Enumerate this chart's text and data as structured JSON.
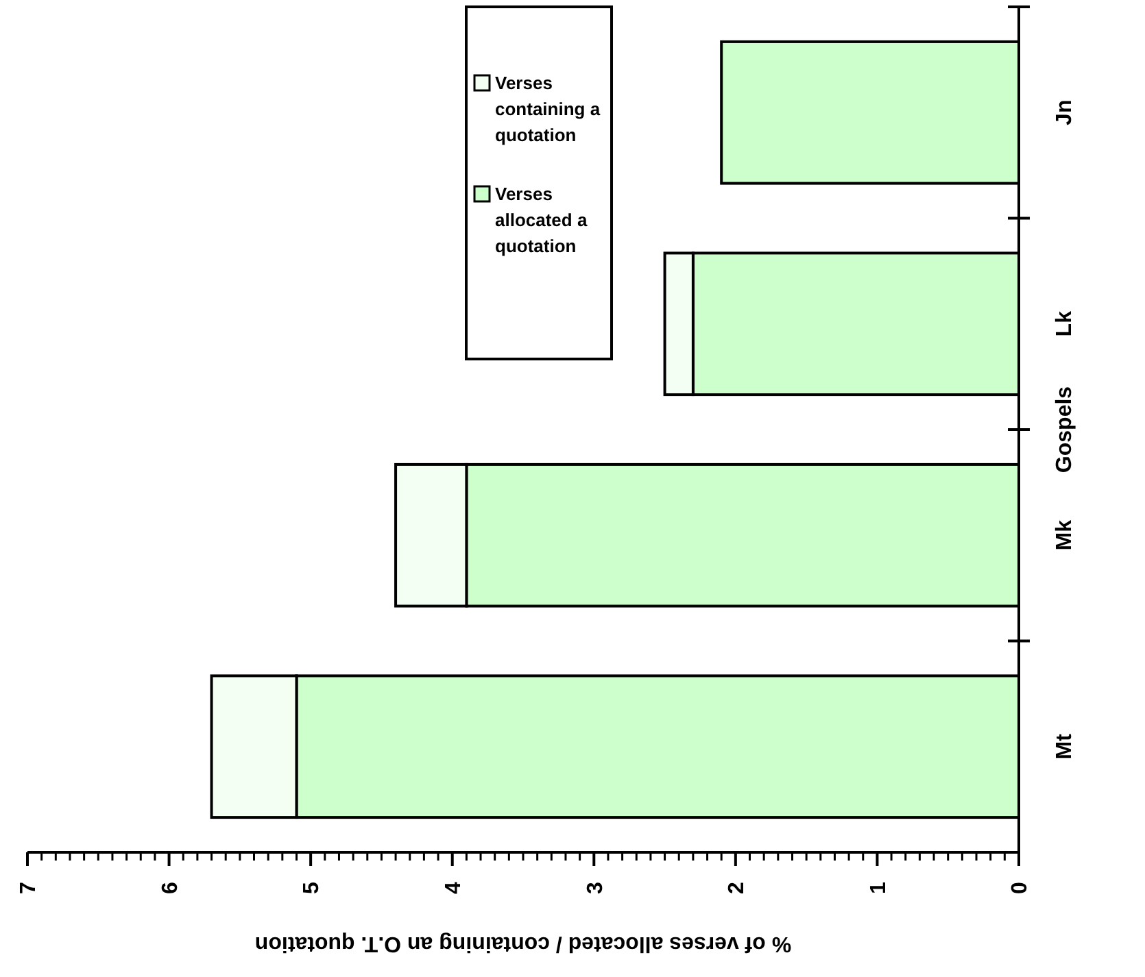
{
  "chart_data": {
    "type": "bar",
    "stacked": true,
    "orientation": "horizontal",
    "xlabel": "% of verses allocated / containing an O.T. quotation",
    "ylabel": "Gospels",
    "categories": [
      "Jn",
      "Lk",
      "Mk",
      "Mt"
    ],
    "series": [
      {
        "name": "Verses allocated a quotation",
        "color": "#ccffcc",
        "values": [
          2.1,
          2.3,
          3.9,
          5.1
        ]
      },
      {
        "name": "Verses containing a quotation",
        "color": "#f4fff4",
        "values": [
          0,
          0.2,
          0.5,
          0.6
        ]
      }
    ],
    "xlim": [
      7,
      0
    ],
    "xticks": [
      0,
      {
        "value": 0.1,
        "label": null
      },
      {
        "value": 0.2,
        "label": null
      },
      {
        "value": 0.3,
        "label": null
      },
      {
        "value": 0.4,
        "label": null
      },
      {
        "value": 0.5,
        "label": null
      },
      {
        "value": 0.6,
        "label": null
      },
      {
        "value": 0.7,
        "label": null
      },
      {
        "value": 0.8,
        "label": null
      },
      {
        "value": 0.9,
        "label": null
      },
      1,
      {
        "value": 1.1,
        "label": null
      },
      {
        "value": 1.2,
        "label": null
      },
      {
        "value": 1.3,
        "label": null
      },
      {
        "value": 1.4,
        "label": null
      },
      {
        "value": 1.5,
        "label": null
      },
      {
        "value": 1.6,
        "label": null
      },
      {
        "value": 1.7,
        "label": null
      },
      {
        "value": 1.8,
        "label": null
      },
      {
        "value": 1.9,
        "label": null
      },
      2,
      {
        "value": 2.1,
        "label": null
      },
      {
        "value": 2.2,
        "label": null
      },
      {
        "value": 2.3,
        "label": null
      },
      {
        "value": 2.4,
        "label": null
      },
      {
        "value": 2.5,
        "label": null
      },
      {
        "value": 2.6,
        "label": null
      },
      {
        "value": 2.7,
        "label": null
      },
      {
        "value": 2.8,
        "label": null
      },
      {
        "value": 2.9,
        "label": null
      },
      3,
      {
        "value": 3.1,
        "label": null
      },
      {
        "value": 3.2,
        "label": null
      },
      {
        "value": 3.3,
        "label": null
      },
      {
        "value": 3.4,
        "label": null
      },
      {
        "value": 3.5,
        "label": null
      },
      {
        "value": 3.6,
        "label": null
      },
      {
        "value": 3.7,
        "label": null
      },
      {
        "value": 3.8,
        "label": null
      },
      {
        "value": 3.9,
        "label": null
      },
      4,
      {
        "value": 4.1,
        "label": null
      },
      {
        "value": 4.2,
        "label": null
      },
      {
        "value": 4.3,
        "label": null
      },
      {
        "value": 4.4,
        "label": null
      },
      {
        "value": 4.5,
        "label": null
      },
      {
        "value": 4.6,
        "label": null
      },
      {
        "value": 4.7,
        "label": null
      },
      {
        "value": 4.8,
        "label": null
      },
      {
        "value": 4.9,
        "label": null
      },
      5,
      {
        "value": 5.1,
        "label": null
      },
      {
        "value": 5.2,
        "label": null
      },
      {
        "value": 5.3,
        "label": null
      },
      {
        "value": 5.4,
        "label": null
      },
      {
        "value": 5.5,
        "label": null
      },
      {
        "value": 5.6,
        "label": null
      },
      {
        "value": 5.7,
        "label": null
      },
      {
        "value": 5.8,
        "label": null
      },
      {
        "value": 5.9,
        "label": null
      },
      6,
      {
        "value": 6.1,
        "label": null
      },
      {
        "value": 6.2,
        "label": null
      },
      {
        "value": 6.3,
        "label": null
      },
      {
        "value": 6.4,
        "label": null
      },
      {
        "value": 6.5,
        "label": null
      },
      {
        "value": 6.6,
        "label": null
      },
      {
        "value": 6.7,
        "label": null
      },
      {
        "value": 6.8,
        "label": null
      },
      {
        "value": 6.9,
        "label": null
      },
      7
    ],
    "legend": "top right"
  }
}
